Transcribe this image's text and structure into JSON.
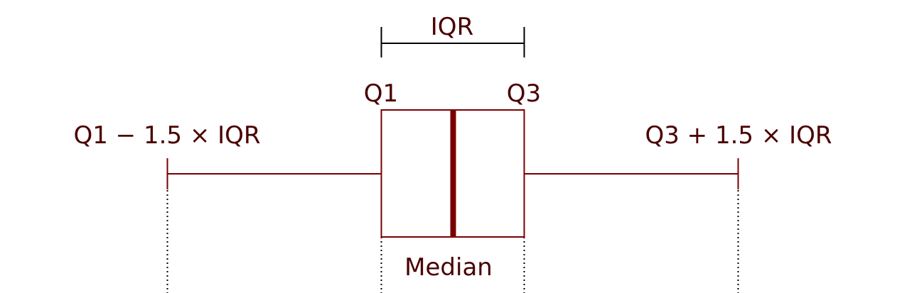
{
  "colors": {
    "accent": "#7a0000",
    "text": "#4a0000",
    "bracket": "#000000",
    "background": "#ffffff"
  },
  "labels": {
    "iqr": "IQR",
    "q1": "Q1",
    "q3": "Q3",
    "lower_fence": "Q1 − 1.5 × IQR",
    "upper_fence": "Q3 + 1.5 × IQR",
    "median": "Median"
  }
}
